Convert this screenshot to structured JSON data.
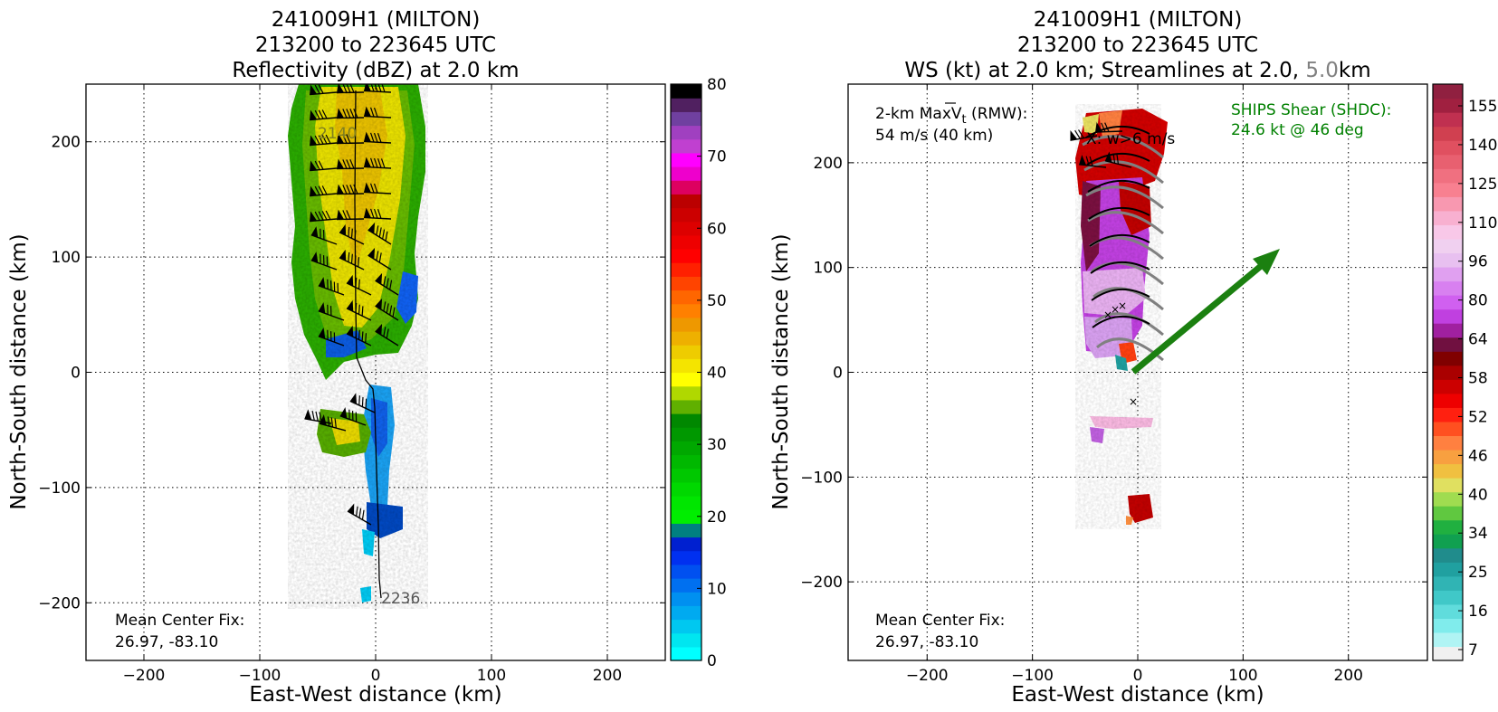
{
  "chart_data": [
    {
      "type": "heatmap",
      "title_lines": [
        "241009H1 (MILTON)",
        "213200 to 223645 UTC",
        "Reflectivity (dBZ) at 2.0 km"
      ],
      "xlabel": "East-West distance (km)",
      "ylabel": "North-South distance (km)",
      "xlim": [
        -250,
        250
      ],
      "ylim": [
        -250,
        250
      ],
      "xticks": [
        -200,
        -100,
        0,
        100,
        200
      ],
      "yticks": [
        -200,
        -100,
        0,
        100,
        200
      ],
      "grid": true,
      "colorbar": {
        "label": "dBZ",
        "min": 0,
        "max": 80,
        "step": 2.5,
        "tick_values": [
          0,
          10,
          20,
          30,
          40,
          50,
          60,
          70,
          80
        ],
        "tick_labels": [
          "0",
          "10",
          "20",
          "30",
          "40",
          "50",
          "60",
          "70",
          "80"
        ],
        "colors": [
          "#00ffff",
          "#00e6f0",
          "#00c8f0",
          "#00aaf0",
          "#0090f0",
          "#0070f0",
          "#0050f0",
          "#0030f0",
          "#0020d0",
          "#008080",
          "#00ee00",
          "#00e600",
          "#00d800",
          "#00c800",
          "#00b800",
          "#00a800",
          "#009800",
          "#008800",
          "#60b000",
          "#b0d800",
          "#ffff00",
          "#f4e400",
          "#eecc00",
          "#eeb000",
          "#ee9800",
          "#ff8000",
          "#ff6600",
          "#ff4400",
          "#ff2000",
          "#ff0000",
          "#ee0000",
          "#dd0000",
          "#cc0000",
          "#bb0000",
          "#dd0060",
          "#ee00cc",
          "#ff00ff",
          "#c040d0",
          "#a040c0",
          "#7040a0",
          "#502060",
          "#000000"
        ]
      },
      "track_labels": [
        {
          "text": "2140",
          "x": -48,
          "y": 206
        },
        {
          "text": "2236",
          "x": 6,
          "y": -200
        }
      ],
      "annotation_lines": [
        "Mean Center Fix:",
        "26.97, -83.10"
      ]
    },
    {
      "type": "heatmap",
      "title_lines": [
        "241009H1 (MILTON)",
        "213200 to 223645 UTC"
      ],
      "title_line3": {
        "part1": "WS (kt) at 2.0 km; Streamlines at 2.0, ",
        "highlight": "5.0",
        "part2": "km"
      },
      "xlabel": "East-West distance (km)",
      "ylabel": "North-South distance (km)",
      "xlim": [
        -275,
        275
      ],
      "ylim": [
        -275,
        275
      ],
      "xticks": [
        -200,
        -100,
        0,
        100,
        200
      ],
      "yticks": [
        -200,
        -100,
        0,
        100,
        200
      ],
      "grid": true,
      "colorbar": {
        "label": "kt",
        "tick_values": [
          7,
          16,
          25,
          34,
          40,
          46,
          52,
          58,
          64,
          80,
          96,
          110,
          125,
          140,
          155
        ],
        "tick_labels": [
          "7",
          "16",
          "25",
          "34",
          "40",
          "46",
          "52",
          "58",
          "64",
          "80",
          "96",
          "110",
          "125",
          "140",
          "155"
        ],
        "colors": [
          "#f0f0f0",
          "#b0f4f4",
          "#80ecec",
          "#60dcdc",
          "#40c8c8",
          "#30b4b4",
          "#20a0a0",
          "#208c8c",
          "#10a050",
          "#20b040",
          "#60c840",
          "#a0dc50",
          "#e0e060",
          "#f0c040",
          "#f8a040",
          "#ff8040",
          "#ff5020",
          "#ff2010",
          "#ee0000",
          "#cc0000",
          "#aa0000",
          "#800000",
          "#701040",
          "#a020a0",
          "#c040e0",
          "#d060f0",
          "#d880f0",
          "#e0a0f0",
          "#e8c0f0",
          "#f0d0f0",
          "#f8c8e8",
          "#f8b0d0",
          "#f898b0",
          "#f88090",
          "#f07080",
          "#e86070",
          "#e05060",
          "#d04050",
          "#c03050",
          "#a02040",
          "#902040"
        ]
      },
      "max_wind_lines": [
        "2-km MaxV",
        "t",
        " (RMW):",
        "54 m/s (40 km)"
      ],
      "xw_label": "X: w>6 m/s",
      "shear": {
        "lines": [
          "SHIPS Shear (SHDC):",
          "24.6 kt @ 46 deg"
        ],
        "speed_kt": 24.6,
        "direction_deg": 46,
        "color": "#008000"
      },
      "annotation_lines": [
        "Mean Center Fix:",
        "26.97, -83.10"
      ]
    }
  ]
}
